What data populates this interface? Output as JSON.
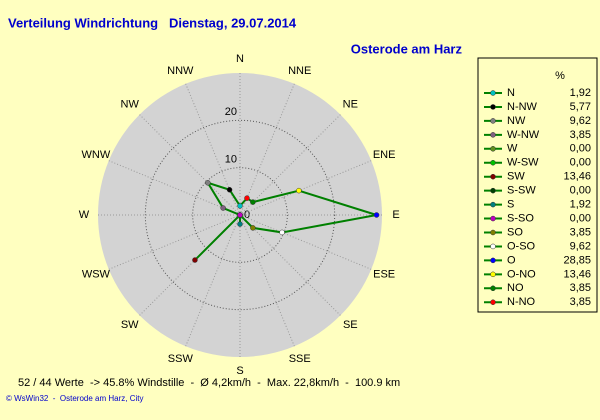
{
  "chart_data": {
    "type": "windrose",
    "title": "Verteilung Windrichtung   Dienstag, 29.07.2014",
    "subtitle": "Osterode am Harz",
    "axis_labels": [
      "N",
      "NNE",
      "NE",
      "ENE",
      "E",
      "ESE",
      "SE",
      "SSE",
      "S",
      "SSW",
      "SW",
      "WSW",
      "W",
      "WNW",
      "NW",
      "NNW"
    ],
    "categories": [
      "N",
      "N-NW",
      "NW",
      "W-NW",
      "W",
      "W-SW",
      "SW",
      "S-SW",
      "S",
      "S-SO",
      "SO",
      "O-SO",
      "O",
      "O-NO",
      "NO",
      "N-NO"
    ],
    "values": [
      1.92,
      5.77,
      9.62,
      3.85,
      0,
      0,
      13.46,
      0,
      1.92,
      0,
      3.85,
      9.62,
      28.85,
      13.46,
      3.85,
      3.85
    ],
    "value_labels": [
      "1,92",
      "5,77",
      "9,62",
      "3,85",
      "0,00",
      "0,00",
      "13,46",
      "0,00",
      "1,92",
      "0,00",
      "3,85",
      "9,62",
      "28,85",
      "13,46",
      "3,85",
      "3,85"
    ],
    "colors": [
      "#00c0c0",
      "#000000",
      "#808080",
      "#806080",
      "#609020",
      "#00c000",
      "#800000",
      "#004000",
      "#008080",
      "#c000c0",
      "#808000",
      "#ffffff",
      "#0000ff",
      "#ffff00",
      "#008000",
      "#ff0000"
    ],
    "line_color": "#008000",
    "legend_header": "%",
    "ylim": [
      0,
      30
    ],
    "yticks": [
      0,
      10,
      20
    ],
    "footer": "52 / 44 Werte  -> 45.8% Windstille  -  Ø 4,2km/h  -  Max. 22,8km/h  -  100.9 km",
    "credit": "© WsWin32  -  Osterode am Harz, City"
  }
}
